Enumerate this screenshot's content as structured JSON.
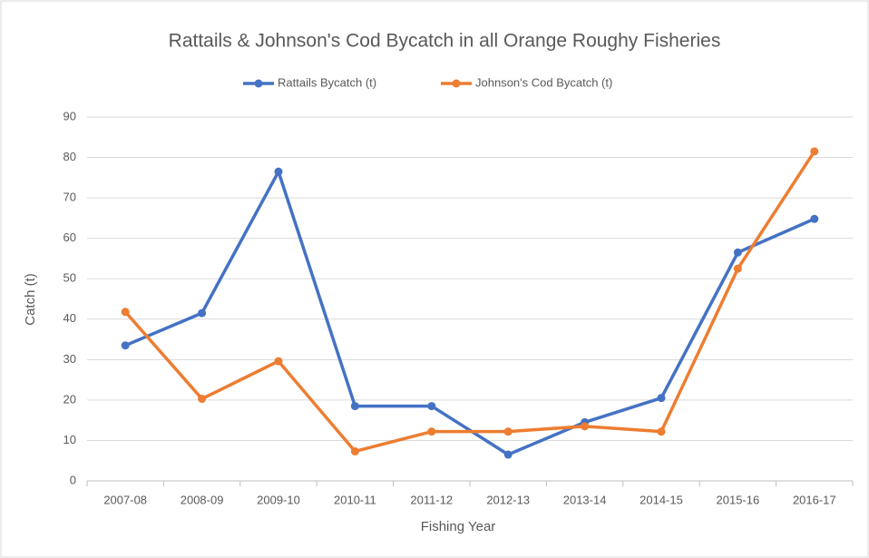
{
  "chart_data": {
    "type": "line",
    "title": "Rattails & Johnson's Cod Bycatch in all Orange Roughy Fisheries",
    "x_label": "Fishing Year",
    "y_label": "Catch (t)",
    "categories": [
      "2007-08",
      "2008-09",
      "2009-10",
      "2010-11",
      "2011-12",
      "2012-13",
      "2013-14",
      "2014-15",
      "2015-16",
      "2016-17"
    ],
    "series": [
      {
        "name": "Rattails Bycatch (t)",
        "color": "#4472c4",
        "values": [
          33.5,
          41.5,
          76.5,
          18.5,
          18.5,
          6.5,
          14.5,
          20.5,
          56.5,
          64.8
        ]
      },
      {
        "name": "Johnson's Cod Bycatch (t)",
        "color": "#ed7d31",
        "values": [
          41.8,
          20.3,
          29.6,
          7.3,
          12.2,
          12.2,
          13.5,
          12.2,
          52.5,
          81.5
        ]
      }
    ],
    "ylim": [
      0,
      90
    ],
    "yticks": [
      0,
      10,
      20,
      30,
      40,
      50,
      60,
      70,
      80,
      90
    ],
    "grid": true,
    "legend": "top"
  }
}
